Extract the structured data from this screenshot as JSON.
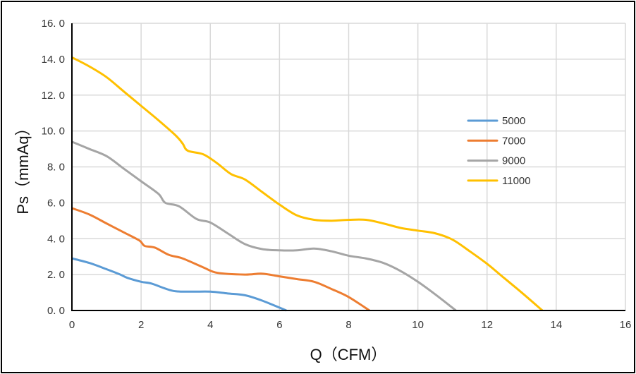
{
  "chart_data": {
    "type": "line",
    "title": "",
    "xlabel": "Q（CFM）",
    "ylabel": "Ps（mmAq）",
    "xlim": [
      0,
      16
    ],
    "ylim": [
      0,
      16
    ],
    "xticks": [
      0,
      2,
      4,
      6,
      8,
      10,
      12,
      14,
      16
    ],
    "yticks": [
      0,
      2,
      4,
      6,
      8,
      10,
      12,
      14,
      16
    ],
    "xtick_labels": [
      "0",
      "2",
      "4",
      "6",
      "8",
      "10",
      "12",
      "14",
      "16"
    ],
    "ytick_labels": [
      "0. 0",
      "2. 0",
      "4. 0",
      "6. 0",
      "8. 0",
      "10. 0",
      "12. 0",
      "14. 0",
      "16. 0"
    ],
    "grid": true,
    "legend_position": "right",
    "series": [
      {
        "name": "5000",
        "color": "#5B9BD5",
        "points": [
          [
            0,
            2.9
          ],
          [
            0.5,
            2.65
          ],
          [
            1,
            2.3
          ],
          [
            1.4,
            2.0
          ],
          [
            1.6,
            1.82
          ],
          [
            2,
            1.6
          ],
          [
            2.3,
            1.5
          ],
          [
            2.7,
            1.22
          ],
          [
            3,
            1.07
          ],
          [
            3.5,
            1.05
          ],
          [
            4,
            1.05
          ],
          [
            4.5,
            0.95
          ],
          [
            5,
            0.85
          ],
          [
            5.5,
            0.55
          ],
          [
            6.2,
            0
          ]
        ]
      },
      {
        "name": "7000",
        "color": "#ED7D31",
        "points": [
          [
            0,
            5.7
          ],
          [
            0.5,
            5.35
          ],
          [
            1,
            4.85
          ],
          [
            1.5,
            4.35
          ],
          [
            1.95,
            3.9
          ],
          [
            2.1,
            3.6
          ],
          [
            2.4,
            3.5
          ],
          [
            2.8,
            3.1
          ],
          [
            3.2,
            2.9
          ],
          [
            3.8,
            2.4
          ],
          [
            4.2,
            2.1
          ],
          [
            5,
            2.0
          ],
          [
            5.5,
            2.05
          ],
          [
            6,
            1.9
          ],
          [
            6.5,
            1.75
          ],
          [
            7,
            1.6
          ],
          [
            7.5,
            1.2
          ],
          [
            8,
            0.75
          ],
          [
            8.6,
            0
          ]
        ]
      },
      {
        "name": "9000",
        "color": "#A5A5A5",
        "points": [
          [
            0,
            9.4
          ],
          [
            0.5,
            9.0
          ],
          [
            1,
            8.6
          ],
          [
            1.5,
            7.9
          ],
          [
            2,
            7.2
          ],
          [
            2.5,
            6.5
          ],
          [
            2.7,
            6.0
          ],
          [
            3.1,
            5.8
          ],
          [
            3.6,
            5.1
          ],
          [
            4,
            4.9
          ],
          [
            4.5,
            4.3
          ],
          [
            5,
            3.7
          ],
          [
            5.5,
            3.42
          ],
          [
            6,
            3.35
          ],
          [
            6.5,
            3.35
          ],
          [
            7,
            3.45
          ],
          [
            7.5,
            3.3
          ],
          [
            8,
            3.05
          ],
          [
            8.5,
            2.9
          ],
          [
            9,
            2.65
          ],
          [
            9.5,
            2.2
          ],
          [
            10,
            1.6
          ],
          [
            10.5,
            0.9
          ],
          [
            11.1,
            0
          ]
        ]
      },
      {
        "name": "11000",
        "color": "#FFC000",
        "points": [
          [
            0,
            14.1
          ],
          [
            0.5,
            13.6
          ],
          [
            1,
            13.0
          ],
          [
            1.5,
            12.2
          ],
          [
            2,
            11.4
          ],
          [
            2.5,
            10.6
          ],
          [
            3,
            9.75
          ],
          [
            3.2,
            9.3
          ],
          [
            3.35,
            8.9
          ],
          [
            3.8,
            8.7
          ],
          [
            4.2,
            8.2
          ],
          [
            4.6,
            7.6
          ],
          [
            5,
            7.3
          ],
          [
            5.5,
            6.6
          ],
          [
            6,
            5.9
          ],
          [
            6.5,
            5.3
          ],
          [
            7,
            5.05
          ],
          [
            7.5,
            5.0
          ],
          [
            8,
            5.05
          ],
          [
            8.5,
            5.05
          ],
          [
            9,
            4.85
          ],
          [
            9.5,
            4.6
          ],
          [
            10,
            4.45
          ],
          [
            10.5,
            4.3
          ],
          [
            11,
            3.95
          ],
          [
            11.5,
            3.3
          ],
          [
            12,
            2.6
          ],
          [
            12.5,
            1.8
          ],
          [
            13,
            1.0
          ],
          [
            13.6,
            0
          ]
        ]
      }
    ]
  }
}
